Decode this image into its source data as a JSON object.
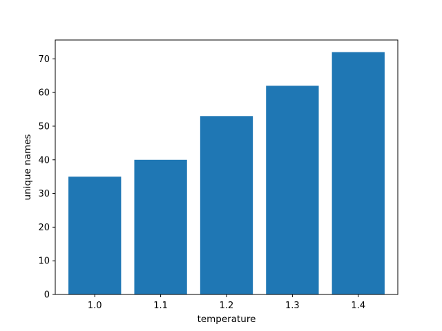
{
  "chart_data": {
    "type": "bar",
    "categories": [
      "1.0",
      "1.1",
      "1.2",
      "1.3",
      "1.4"
    ],
    "values": [
      35,
      40,
      53,
      62,
      72
    ],
    "title": "",
    "xlabel": "temperature",
    "ylabel": "unique names",
    "ylim": [
      0,
      75.6
    ],
    "yticks": [
      0,
      10,
      20,
      30,
      40,
      50,
      60,
      70
    ],
    "bar_color": "#1f77b4",
    "grid": false,
    "legend": "none"
  }
}
